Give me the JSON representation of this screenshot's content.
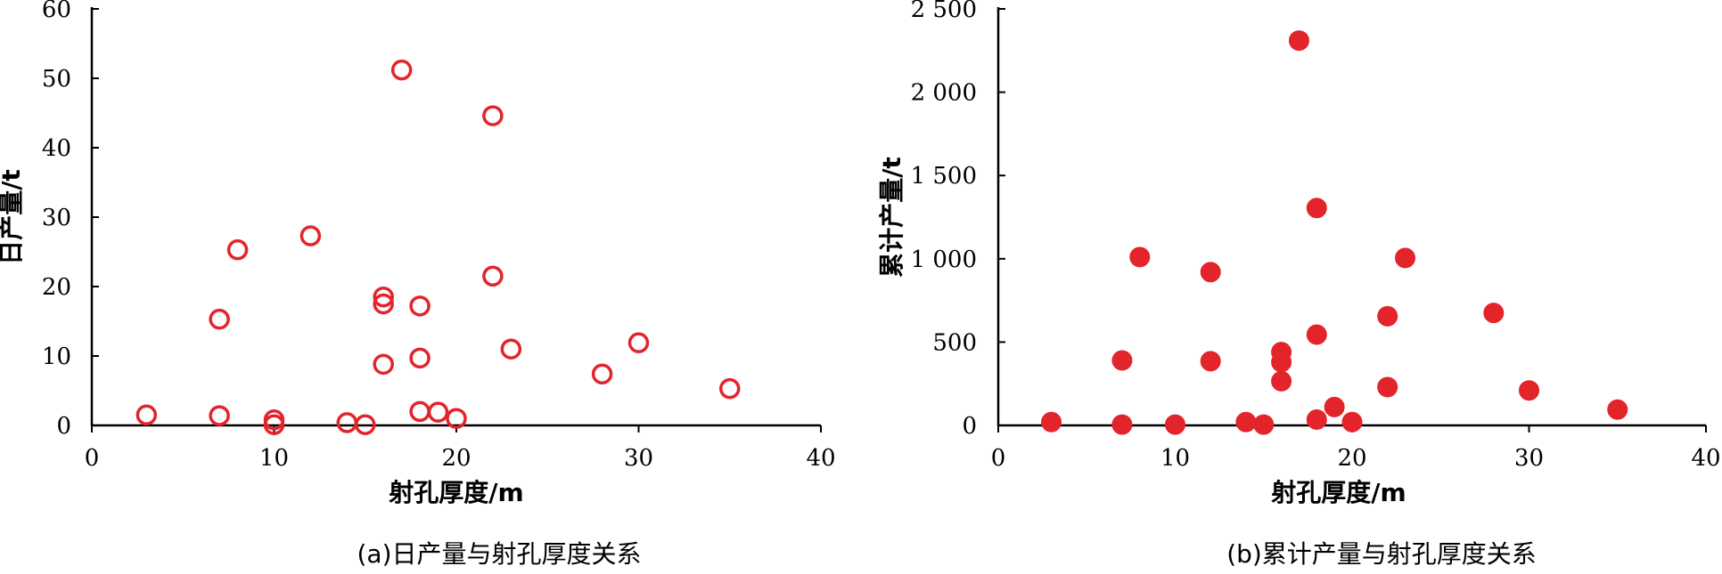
{
  "chart_data": [
    {
      "type": "scatter",
      "caption": "(a)日产量与射孔厚度关系",
      "xlabel": "射孔厚度/m",
      "ylabel": "日产量/t",
      "xlim": [
        0,
        40
      ],
      "ylim": [
        0,
        60
      ],
      "xticks": [
        "0",
        "10",
        "20",
        "30",
        "40"
      ],
      "yticks": [
        "0",
        "10",
        "20",
        "30",
        "40",
        "50",
        "60"
      ],
      "marker": "hollow-circle",
      "color": "#e3242b",
      "points": [
        {
          "x": 3,
          "y": 1.5
        },
        {
          "x": 7,
          "y": 15.3
        },
        {
          "x": 7,
          "y": 1.4
        },
        {
          "x": 8,
          "y": 25.3
        },
        {
          "x": 10,
          "y": 0.8
        },
        {
          "x": 10,
          "y": 0.1
        },
        {
          "x": 12,
          "y": 27.3
        },
        {
          "x": 14,
          "y": 0.4
        },
        {
          "x": 15,
          "y": 0.1
        },
        {
          "x": 16,
          "y": 18.5
        },
        {
          "x": 16,
          "y": 17.5
        },
        {
          "x": 16,
          "y": 8.8
        },
        {
          "x": 17,
          "y": 51.2
        },
        {
          "x": 18,
          "y": 17.2
        },
        {
          "x": 18,
          "y": 9.7
        },
        {
          "x": 18,
          "y": 2.0
        },
        {
          "x": 19,
          "y": 1.9
        },
        {
          "x": 20,
          "y": 1.0
        },
        {
          "x": 22,
          "y": 44.6
        },
        {
          "x": 22,
          "y": 21.5
        },
        {
          "x": 23,
          "y": 11.0
        },
        {
          "x": 28,
          "y": 7.4
        },
        {
          "x": 30,
          "y": 11.9
        },
        {
          "x": 35,
          "y": 5.3
        }
      ]
    },
    {
      "type": "scatter",
      "caption": "(b)累计产量与射孔厚度关系",
      "xlabel": "射孔厚度/m",
      "ylabel": "累计产量/t",
      "xlim": [
        0,
        40
      ],
      "ylim": [
        0,
        2500
      ],
      "xticks": [
        "0",
        "10",
        "20",
        "30",
        "40"
      ],
      "yticks": [
        "0",
        "500",
        "1 000",
        "1 500",
        "2 000",
        "2 500"
      ],
      "marker": "filled-circle",
      "color": "#e3242b",
      "points": [
        {
          "x": 3,
          "y": 20
        },
        {
          "x": 7,
          "y": 390
        },
        {
          "x": 7,
          "y": 5
        },
        {
          "x": 8,
          "y": 1010
        },
        {
          "x": 10,
          "y": 5
        },
        {
          "x": 12,
          "y": 920
        },
        {
          "x": 12,
          "y": 385
        },
        {
          "x": 14,
          "y": 20
        },
        {
          "x": 15,
          "y": 5
        },
        {
          "x": 16,
          "y": 440
        },
        {
          "x": 16,
          "y": 380
        },
        {
          "x": 16,
          "y": 265
        },
        {
          "x": 17,
          "y": 2310
        },
        {
          "x": 18,
          "y": 1305
        },
        {
          "x": 18,
          "y": 545
        },
        {
          "x": 18,
          "y": 35
        },
        {
          "x": 19,
          "y": 110
        },
        {
          "x": 20,
          "y": 20
        },
        {
          "x": 22,
          "y": 655
        },
        {
          "x": 22,
          "y": 230
        },
        {
          "x": 23,
          "y": 1005
        },
        {
          "x": 28,
          "y": 675
        },
        {
          "x": 30,
          "y": 210
        },
        {
          "x": 35,
          "y": 95
        }
      ]
    }
  ]
}
